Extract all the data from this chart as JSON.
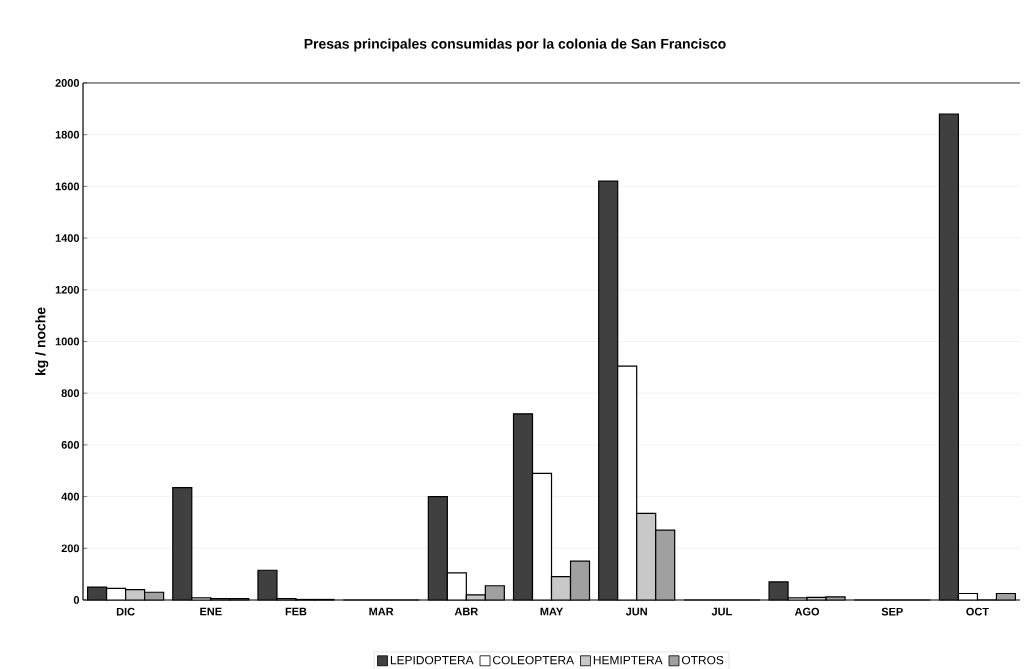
{
  "chart_data": {
    "type": "bar",
    "title": "Presas principales consumidas por la colonia de San Francisco",
    "ylabel": "kg / noche",
    "categories": [
      "DIC",
      "ENE",
      "FEB",
      "MAR",
      "ABR",
      "MAY",
      "JUN",
      "JUL",
      "AGO",
      "SEP",
      "OCT"
    ],
    "series": [
      {
        "name": "LEPIDOPTERA",
        "color": "#404040",
        "values": [
          50,
          435,
          115,
          0,
          400,
          720,
          1620,
          0,
          70,
          0,
          1880
        ]
      },
      {
        "name": "COLEOPTERA",
        "color": "#ffffff",
        "values": [
          45,
          8,
          5,
          0,
          105,
          490,
          905,
          0,
          8,
          0,
          25
        ]
      },
      {
        "name": "HEMIPTERA",
        "color": "#c8c8c8",
        "values": [
          40,
          5,
          2,
          0,
          20,
          90,
          335,
          0,
          10,
          0,
          0
        ]
      },
      {
        "name": "OTROS",
        "color": "#a0a0a0",
        "values": [
          30,
          5,
          2,
          0,
          55,
          150,
          270,
          0,
          12,
          0,
          25
        ]
      }
    ],
    "ylim": [
      0,
      2000
    ],
    "yticks": [
      0,
      200,
      400,
      600,
      800,
      1000,
      1200,
      1400,
      1600,
      1800,
      2000
    ],
    "grid": "y",
    "legend": "bottom"
  }
}
